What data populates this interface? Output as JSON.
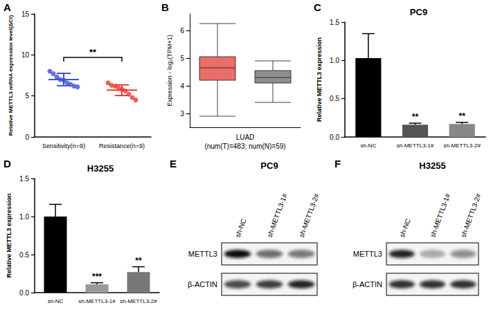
{
  "chart_data": [
    {
      "panel": "A",
      "type": "scatter",
      "categories": [
        "Sensitivity(n=9)",
        "Resistance(n=9)"
      ],
      "ylabel": "Relative METTL3 mRNA expression level(ΔCt)",
      "values": [
        [
          8.0,
          7.7,
          7.3,
          7.0,
          6.9,
          6.6,
          6.4,
          6.2,
          6.1
        ],
        [
          6.6,
          6.3,
          6.2,
          6.0,
          5.8,
          5.6,
          5.2,
          4.8,
          4.5
        ]
      ],
      "mean": [
        7.0,
        5.7
      ],
      "sd": [
        0.75,
        0.65
      ],
      "colors": [
        "#3d4fd8",
        "#e83a35"
      ],
      "marker": "circle",
      "ylim": [
        0,
        15
      ],
      "yticks": [
        0,
        5,
        10,
        15
      ],
      "grid": false,
      "annotations": [
        {
          "text": "**"
        }
      ]
    },
    {
      "panel": "B",
      "type": "boxplot",
      "categories": [
        null,
        null
      ],
      "ylabel": "Expression - log₂(TPM+1)",
      "xlabel": "LUAD\n(num(T)=483; num(N)=59)",
      "boxes": [
        [
          2.9,
          4.2,
          4.65,
          5.05,
          6.25
        ],
        [
          3.4,
          4.1,
          4.3,
          4.55,
          4.9
        ]
      ],
      "colors": [
        "#e8534d",
        "#7a7a7a"
      ],
      "ylim": [
        2.5,
        6.6
      ],
      "yticks": [
        3,
        4,
        5,
        6
      ],
      "grid": false,
      "tick_labels": "y"
    },
    {
      "panel": "C",
      "type": "bar",
      "title": "PC9",
      "categories": [
        "sh-NC",
        "sh-METTL3-1#",
        "sh-METTL3-2#"
      ],
      "ylabel": "Relative METTL3 expression",
      "values": [
        1.03,
        0.16,
        0.17
      ],
      "errors": [
        0.32,
        0.02,
        0.02
      ],
      "colors": [
        "#000000",
        "#555555",
        "#888888"
      ],
      "ylim": [
        0,
        1.5
      ],
      "yticks": [
        {
          "value": 0,
          "label": "0.0"
        },
        {
          "value": 0.5,
          "label": "0.5"
        },
        {
          "value": 1,
          "label": "1.0"
        },
        {
          "value": 1.5,
          "label": "1.5"
        }
      ],
      "grid": false,
      "annotations": [
        {
          "category": "sh-METTL3-1#",
          "text": "**"
        },
        {
          "category": "sh-METTL3-2#",
          "text": "**"
        }
      ]
    },
    {
      "panel": "D",
      "type": "bar",
      "title": "H3255",
      "categories": [
        "sh-NC",
        "sh-METTL3-1#",
        "sh-METTL3-2#"
      ],
      "ylabel": "Relative METTL3 expression",
      "values": [
        1.0,
        0.11,
        0.27
      ],
      "errors": [
        0.16,
        0.02,
        0.07
      ],
      "colors": [
        "#000000",
        "#9a9a9a",
        "#777777"
      ],
      "ylim": [
        0,
        1.5
      ],
      "yticks": [
        {
          "value": 0,
          "label": "0.0"
        },
        {
          "value": 0.5,
          "label": "0.5"
        },
        {
          "value": 1,
          "label": "1.0"
        },
        {
          "value": 1.5,
          "label": "1.5"
        }
      ],
      "grid": false,
      "annotations": [
        {
          "category": "sh-METTL3-1#",
          "text": "***"
        },
        {
          "category": "sh-METTL3-2#",
          "text": "**"
        }
      ]
    }
  ],
  "blots": [
    {
      "panel": "E",
      "title": "PC9",
      "lanes": [
        "sh-NC",
        "sh-METTL3-1#",
        "sh-METTL3-2#"
      ],
      "rows": [
        {
          "name": "METTL3",
          "intensities": [
            1.0,
            0.6,
            0.55
          ]
        },
        {
          "name": "β-ACTIN",
          "intensities": [
            0.75,
            0.8,
            0.9
          ]
        }
      ]
    },
    {
      "panel": "F",
      "title": "H3255",
      "lanes": [
        "sh-NC",
        "sh-METTL3-1#",
        "sh-METTL3-2#"
      ],
      "rows": [
        {
          "name": "METTL3",
          "intensities": [
            0.9,
            0.3,
            0.45
          ]
        },
        {
          "name": "β-ACTIN",
          "intensities": [
            0.85,
            0.85,
            0.85
          ]
        }
      ]
    }
  ]
}
